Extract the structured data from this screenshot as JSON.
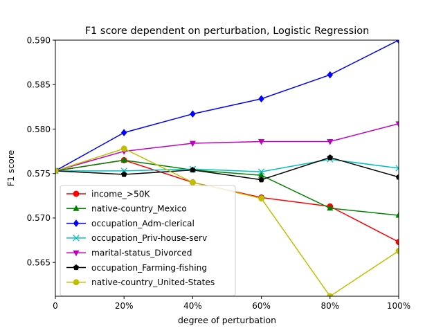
{
  "chart_data": {
    "type": "line",
    "title": "F1 score dependent on perturbation, Logistic Regression",
    "xlabel": "degree of perturbation",
    "ylabel": "F1 score",
    "x": [
      0,
      20,
      40,
      60,
      80,
      100
    ],
    "x_tick_labels": [
      "0",
      "20%",
      "40%",
      "60%",
      "80%",
      "100%"
    ],
    "xlim": [
      0,
      100
    ],
    "ylim": [
      0.5612,
      0.59
    ],
    "y_ticks": [
      0.565,
      0.57,
      0.575,
      0.58,
      0.585,
      0.59
    ],
    "y_tick_labels": [
      "0.565",
      "0.570",
      "0.575",
      "0.580",
      "0.585",
      "0.590"
    ],
    "grid": false,
    "legend_position": "lower-left",
    "series": [
      {
        "name": "income_>50K",
        "color": "#ff0000",
        "marker": "circle",
        "values": [
          0.5753,
          0.5765,
          0.574,
          0.5723,
          0.5713,
          0.5673
        ]
      },
      {
        "name": "native-country_Mexico",
        "color": "#008000",
        "marker": "triangle-up",
        "values": [
          0.5753,
          0.5765,
          0.5754,
          0.5748,
          0.5711,
          0.5703
        ]
      },
      {
        "name": "occupation_Adm-clerical",
        "color": "#0000ff",
        "marker": "diamond",
        "values": [
          0.5753,
          0.5796,
          0.5817,
          0.5834,
          0.5861,
          0.59
        ]
      },
      {
        "name": "occupation_Priv-house-serv",
        "color": "#00bfbf",
        "marker": "x",
        "values": [
          0.5753,
          0.5753,
          0.5755,
          0.5752,
          0.5766,
          0.5756
        ]
      },
      {
        "name": "marital-status_Divorced",
        "color": "#bf00bf",
        "marker": "triangle-down",
        "values": [
          0.5753,
          0.5775,
          0.5784,
          0.5786,
          0.5786,
          0.5806
        ]
      },
      {
        "name": "occupation_Farming-fishing",
        "color": "#000000",
        "marker": "pentagon",
        "values": [
          0.5753,
          0.5749,
          0.5754,
          0.5743,
          0.5768,
          0.5746
        ]
      },
      {
        "name": "native-country_United-States",
        "color": "#bfbf00",
        "marker": "circle",
        "values": [
          0.5753,
          0.5778,
          0.574,
          0.5722,
          0.5612,
          0.5663
        ]
      }
    ]
  }
}
